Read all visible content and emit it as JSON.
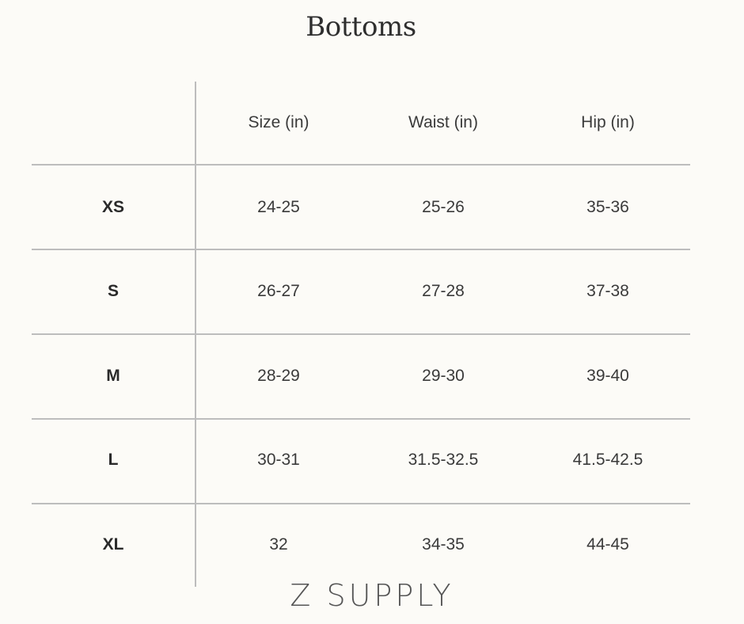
{
  "title": "Bottoms",
  "table": {
    "headers": [
      "",
      "Size (in)",
      "Waist (in)",
      "Hip (in)"
    ],
    "rows": [
      {
        "label": "XS",
        "size": "24-25",
        "waist": "25-26",
        "hip": "35-36"
      },
      {
        "label": "S",
        "size": "26-27",
        "waist": "27-28",
        "hip": "37-38"
      },
      {
        "label": "M",
        "size": "28-29",
        "waist": "29-30",
        "hip": "39-40"
      },
      {
        "label": "L",
        "size": "30-31",
        "waist": "31.5-32.5",
        "hip": "41.5-42.5"
      },
      {
        "label": "XL",
        "size": "32",
        "waist": "34-35",
        "hip": "44-45"
      }
    ]
  },
  "logo": "Z SUPPLY",
  "colors": {
    "background": "#fcfbf7",
    "rule": "#bdbdbd",
    "text": "#3a3a3a"
  }
}
